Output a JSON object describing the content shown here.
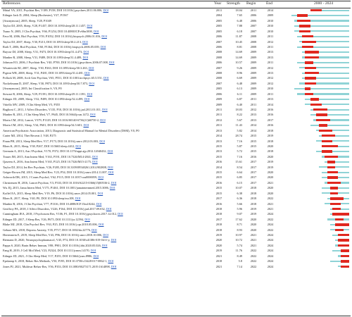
{
  "chart_data": {
    "type": "table",
    "columns": {
      "references": "References",
      "year": "Year",
      "strength": "Strength",
      "begin": "Begin",
      "end": "End",
      "timeline": "2000 - 2024"
    },
    "timeline_range": [
      2000,
      2024
    ],
    "colors": {
      "burst": "#e0281f",
      "timeline": "#8fd3d6",
      "doi": "#1a4fb8"
    },
    "rows": [
      {
        "ref": "Mittal VA, 2011, Psychiat Res, V189, P158, DOI 10.1016/j.psychres.2011.06.006, ",
        "year": "2011",
        "strength": "18.04",
        "begin": "2011",
        "end": "2014"
      },
      {
        "ref": "Edinger Jack D, 2004, Sleep (Rochester), V27, P1567",
        "year": "2004",
        "strength": "7.65",
        "begin": "2006",
        "end": "2009"
      },
      {
        "ref": "[Anonymous], 2005, Sleep, V28, P1049",
        "year": "2005",
        "strength": "6.48",
        "begin": "2006",
        "end": "2010"
      },
      {
        "ref": "Taylor DJ, 2005, Sleep, V28, P1457, DOI 10.1093/sleep/28.11.1457, ",
        "year": "2005",
        "strength": "7.88",
        "begin": "2007",
        "end": "2010"
      },
      {
        "ref": "Tsuno N, 2005, J Clin Psychiat, V66, P1254, DOI 10.4088/JCP.v66n1008, ",
        "year": "2005",
        "strength": "6.18",
        "begin": "2007",
        "end": "2010"
      },
      {
        "ref": "Fava M, 2006, Biol Psychiat, V59, P1052, DOI 10.1016/j.biopsych.2006.01.016, ",
        "year": "2006",
        "strength": "11.87",
        "begin": "2008",
        "end": "2011"
      },
      {
        "ref": "Taylor DJ, 2007, Sleep, V30, P213, DOI 10.1093/sleep/30.2.213, ",
        "year": "2007",
        "strength": "10.45",
        "begin": "2008",
        "end": "2012"
      },
      {
        "ref": "Roth T, 2006, Biol Psychiat, V60, P1364, DOI 10.1016/j.biopsych.2006.05.039, ",
        "year": "2006",
        "strength": "8.81",
        "begin": "2008",
        "end": "2011"
      },
      {
        "ref": "Buysse DJ, 2008, Sleep, V31, P473, DOI 10.1093/sleep/31.4.473, ",
        "year": "2008",
        "strength": "14.69",
        "begin": "2009",
        "end": "2013"
      },
      {
        "ref": "Manber R, 2008, Sleep, V31, P489, DOI 10.1093/sleep/31.4.489, ",
        "year": "2008",
        "strength": "14.69",
        "begin": "2009",
        "end": "2013"
      },
      {
        "ref": "Johnson EO, 2006, J Psychiatr Res, V40, P700, DOI 10.1016/j.jpsychires.2006.07.008, ",
        "year": "2006",
        "strength": "10.57",
        "begin": "2009",
        "end": "2011"
      },
      {
        "ref": "Wisniewski RJ, 2007, Sleep, V30, P263, DOI 10.1093/sleep/30.3.263, ",
        "year": "2007",
        "strength": "9.26",
        "begin": "2009",
        "end": "2012"
      },
      {
        "ref": "Pigeon WR, 2008, Sleep, V31, P481, DOI 10.1093/sleep/31.4.481, ",
        "year": "2008",
        "strength": "8.96",
        "begin": "2009",
        "end": "2013"
      },
      {
        "ref": "Pollack M, 2008, Arch Gen Psychiat, V65, P551, DOI 10.1001/archpsyc.65.5.551, ",
        "year": "2008",
        "strength": "6.69",
        "begin": "2009",
        "end": "2012"
      },
      {
        "ref": "Nockelmann D, 2007, Sleep, V30, P873, DOI 10.1093/sleep/30.7.873, ",
        "year": "2007",
        "strength": "6.48",
        "begin": "2009",
        "end": "2012"
      },
      {
        "ref": "[Anonymous], 2005, Int Classification S, V0, P0",
        "year": "2005",
        "strength": "6.13",
        "begin": "2009",
        "end": "2010"
      },
      {
        "ref": "Stewart R, 2006, Sleep, V29, P1391, DOI 10.1093/sleep/29.11.1391, ",
        "year": "2006",
        "strength": "6.11",
        "begin": "2009",
        "end": "2011"
      },
      {
        "ref": "Edinger JD, 2009, Sleep, V32, P499, DOI 10.1093/sleep/32.4.499, ",
        "year": "2009",
        "strength": "6.87",
        "begin": "2011",
        "end": "2013"
      },
      {
        "ref": "Vitiello MV, 2009, J Clin Sleep Med, V5, P355",
        "year": "2009",
        "strength": "6.40",
        "begin": "2011",
        "end": "2014"
      },
      {
        "ref": "Baglioni C, 2011, J Affect Disorders, V135, P10, DOI 10.1016/j.jad.2011.01.011, ",
        "year": "2011",
        "strength": "18.03",
        "begin": "2012",
        "end": "2016"
      },
      {
        "ref": "Manber R, 2011, J Clin Sleep Med, V7, P645, DOI 10.5664/jcsm.1472, ",
        "year": "2011",
        "strength": "8.22",
        "begin": "2013",
        "end": "2016"
      },
      {
        "ref": "Morin CM, 2012, Lancet, V379, P1129, DOI 10.1016/S0140-6736(11)60750-2, ",
        "year": "2012",
        "strength": "5.67",
        "begin": "2013",
        "end": "2017"
      },
      {
        "ref": "Morin CM, 2011, Sleep, V34, P601, DOI 10.1093/sleep/34.5.601, ",
        "year": "2011",
        "strength": "11.43",
        "begin": "2014",
        "end": "2016"
      },
      {
        "ref": "American Psychiatric Association, 2013, Diagnostic and Statistical Manual for Mental Disorders (DSM), V0, P0",
        "year": "2013",
        "strength": "5.82",
        "begin": "2014",
        "end": "2018"
      },
      {
        "ref": "Carter MJ, 2014, Ther Recreat J, V48, P275",
        "year": "2014",
        "strength": "28.74",
        "begin": "2015",
        "end": "2019"
      },
      {
        "ref": "Finan PH, 2013, Sleep Med Rev, V17, P173, DOI 10.1016/j.smrv.2012.03.003, ",
        "year": "2013",
        "strength": "7.16",
        "begin": "2015",
        "end": "2018"
      },
      {
        "ref": "Blom K, 2015, Sleep, V38, P267, DOI 10.5665/sleep.4412, ",
        "year": "2015",
        "strength": "5.87",
        "begin": "2015",
        "end": "2020"
      },
      {
        "ref": "Germain A, 2013, Am J Psychiat, V170, P372, DOI 10.1176/appi.ajp.2012.12040432, ",
        "year": "2013",
        "strength": "5.72",
        "begin": "2015",
        "end": "2018"
      },
      {
        "ref": "Trauer JM, 2015, Ann Intern Med, V163, P191, DOI 10.7326/M14-2841, ",
        "year": "2015",
        "strength": "7.16",
        "begin": "2016",
        "end": "2020"
      },
      {
        "ref": "Qaseem A, 2016, Ann Intern Med, V165, P125, DOI 10.7326/M15-2175, ",
        "year": "2016",
        "strength": "15.61",
        "begin": "2017",
        "end": "2019"
      },
      {
        "ref": "Taylor DJ, 2014, Int Rev Psychiatr, V26, P205, DOI 10.3109/09540261.2014.902808, ",
        "year": "2014",
        "strength": "8.54",
        "begin": "2017",
        "end": "2019"
      },
      {
        "ref": "Geiger-Brown JM, 2015, Sleep Med Rev, V23, P54, DOI 10.1016/j.smrv.2014.11.007, ",
        "year": "2015",
        "strength": "6.64",
        "begin": "2017",
        "end": "2020"
      },
      {
        "ref": "Ashworth DK, 2015, J Couns Psychol, V62, P115, DOI 10.1037/cou0000059, ",
        "year": "2015",
        "strength": "6.85",
        "begin": "2017",
        "end": "2020"
      },
      {
        "ref": "Christensen H, 2016, Lancet Psychiat, V3, P333, DOI 10.1016/S2215-0366(15)00536-2, ",
        "year": "2016",
        "strength": "6.15",
        "begin": "2017",
        "end": "2021"
      },
      {
        "ref": "Wu JQ, 2015, Jama Intern Med, V175, P1461, DOI 10.1001/jamainternmed.2015.3006, ",
        "year": "2015",
        "strength": "10.07",
        "begin": "2018",
        "end": "2020"
      },
      {
        "ref": "Koffel EA, 2015, Sleep Med Rev, V19, P6, DOI 10.1016/j.smrv.2014.05.001, ",
        "year": "2015",
        "strength": "6.38",
        "begin": "2018",
        "end": "2020"
      },
      {
        "ref": "Blom K, 2017, Sleep, V40, P0, DOI 10.1093/sleep/zsx108, ",
        "year": "2017",
        "strength": "6.36",
        "begin": "2018",
        "end": "2022"
      },
      {
        "ref": "Manber R, 2016, J Clin Psychiat, V77, P1316, DOI 10.4088/JCP.15m10244, ",
        "year": "2016",
        "strength": "5.66",
        "begin": "2018",
        "end": "2021"
      },
      {
        "ref": "Geoffroy PA, 2018, J Affect Disorders, V226, P164, DOI 10.1016/j.jad.2017.09.032, ",
        "year": "2018",
        "strength": "5.96",
        "begin": "2019",
        "end": "2021"
      },
      {
        "ref": "Cunningham JEA, 2018, J Psychosom Res, V106, P1, DOI 10.1016/j.jpsychores.2017.12.012, ",
        "year": "2018",
        "strength": "9.07",
        "begin": "2019",
        "end": "2024"
      },
      {
        "ref": "Edinger JD, 2017, J Sleep Res, V26, P675, DOI 10.1111/jsr.12594, ",
        "year": "2017",
        "strength": "17.62",
        "begin": "2020",
        "end": "2022"
      },
      {
        "ref": "Blake MJ, 2018, Clin Psychol Rev, V63, P25, DOI 10.1016/j.cpr.2018.05.006, ",
        "year": "2018",
        "strength": "8.71",
        "begin": "2020",
        "end": "2024"
      },
      {
        "ref": "Gebara MA, 2018, Depress Anxiety, V35, P717, DOI 10.1002/da.22776, ",
        "year": "2018",
        "strength": "8.93",
        "begin": "2020",
        "end": "2022"
      },
      {
        "ref": "Hertenstein E, 2019, Sleep Med Rev, V43, P96, DOI 10.1016/j.smrv.2018.10.006, ",
        "year": "2019",
        "strength": "10.97",
        "begin": "2021",
        "end": "2024"
      },
      {
        "ref": "Riemann D, 2020, Neuropsychopharmacol, V45, P74, DOI 10.1038/s41386-019-0411-y, ",
        "year": "2020",
        "strength": "10.72",
        "begin": "2021",
        "end": "2024"
      },
      {
        "ref": "Pappa S, 2020, Brain Behav Immun, V88, P901, DOI 10.1016/j.bbi.2020.05.026, ",
        "year": "2020",
        "strength": "5.74",
        "begin": "2021",
        "end": "2024"
      },
      {
        "ref": "Fang H, 2019, J Cell Mol Med, V23, P2324, DOI 10.1111/jcmm.14170, ",
        "year": "2019",
        "strength": "11.76",
        "begin": "2022",
        "end": "2024"
      },
      {
        "ref": "Edinger JD, 2021, J Clin Sleep Med, V17, P255, DOI 10.5664/jcsm.8986, ",
        "year": "2021",
        "strength": "8.49",
        "begin": "2022",
        "end": "2024"
      },
      {
        "ref": "Epskamp S, 2018, Behav Res Methods, V50, P195, DOI 10.3758/s13428-017-0862-1, ",
        "year": "2018",
        "strength": "5.8",
        "begin": "2022",
        "end": "2024"
      },
      {
        "ref": "Jones PJ, 2021, Multivar Behav Res, V56, P353, DOI 10.1080/00273171.2019.1614898, ",
        "year": "2021",
        "strength": "7.14",
        "begin": "2022",
        "end": "2024"
      }
    ]
  }
}
